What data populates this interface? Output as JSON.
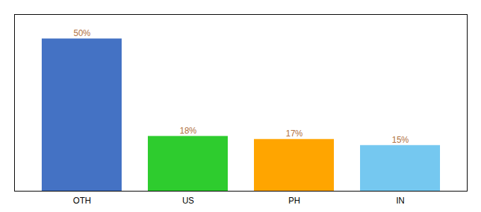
{
  "chart_data": {
    "type": "bar",
    "categories": [
      "OTH",
      "US",
      "PH",
      "IN"
    ],
    "values": [
      50,
      18,
      17,
      15
    ],
    "value_labels": [
      "50%",
      "18%",
      "17%",
      "15%"
    ],
    "colors": [
      "#4472C4",
      "#2ECC2E",
      "#FFA500",
      "#75C8F0"
    ],
    "ylim": [
      0,
      58
    ],
    "data_labels": true,
    "tick_labels": "x",
    "grid": false
  }
}
